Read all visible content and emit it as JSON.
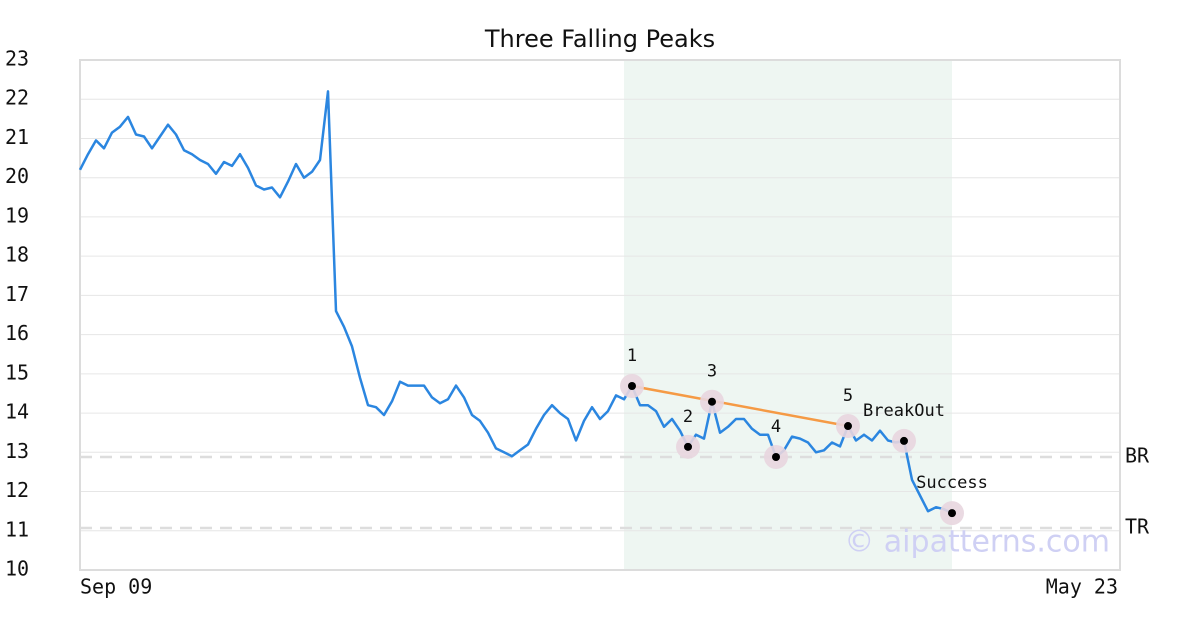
{
  "chart_data": {
    "type": "line",
    "title": "Three Falling Peaks",
    "categories": [
      "Sep 09",
      null,
      null,
      null,
      null,
      null,
      null,
      null,
      null,
      null,
      null,
      null,
      null,
      null,
      null,
      null,
      null,
      null,
      null,
      null,
      null,
      null,
      null,
      null,
      null,
      null,
      null,
      null,
      null,
      null,
      null,
      null,
      null,
      null,
      null,
      null,
      null,
      null,
      null,
      null,
      null,
      null,
      null,
      null,
      null,
      null,
      null,
      null,
      null,
      null,
      null,
      null,
      null,
      null,
      null,
      null,
      null,
      null,
      null,
      null,
      null,
      null,
      null,
      null,
      null,
      null,
      null,
      null,
      null,
      null,
      null,
      null,
      null,
      null,
      null,
      null,
      null,
      null,
      null,
      null,
      null,
      null,
      null,
      null,
      null,
      null,
      null,
      null,
      null,
      null,
      null,
      null,
      null,
      null,
      null,
      null,
      null,
      null,
      null,
      null,
      null,
      null,
      null,
      null,
      null,
      null,
      null,
      null,
      null,
      null,
      null,
      null,
      null,
      null,
      null,
      null,
      null,
      null,
      null,
      null,
      null,
      null,
      null,
      null,
      null,
      null,
      null,
      null,
      null,
      null,
      "May 23"
    ],
    "series": [
      {
        "color": "#2b86e0",
        "values": [
          20.2,
          20.6,
          20.95,
          20.75,
          21.15,
          21.3,
          21.55,
          21.1,
          21.05,
          20.75,
          21.05,
          21.35,
          21.1,
          20.7,
          20.6,
          20.45,
          20.35,
          20.1,
          20.4,
          20.3,
          20.6,
          20.25,
          19.8,
          19.7,
          19.75,
          19.5,
          19.9,
          20.35,
          20.0,
          20.15,
          20.45,
          22.2,
          16.6,
          16.2,
          15.7,
          14.9,
          14.2,
          14.15,
          13.95,
          14.3,
          14.8,
          14.7,
          14.7,
          14.7,
          14.4,
          14.25,
          14.35,
          14.7,
          14.4,
          13.95,
          13.8,
          13.5,
          13.1,
          13.0,
          12.9,
          13.05,
          13.2,
          13.6,
          13.95,
          14.2,
          14.0,
          13.85,
          13.3,
          13.8,
          14.15,
          13.85,
          14.05,
          14.45,
          14.35,
          14.69,
          14.2,
          14.2,
          14.05,
          13.65,
          13.85,
          13.55,
          13.14,
          13.45,
          13.35,
          14.29,
          13.5,
          13.65,
          13.85,
          13.85,
          13.6,
          13.45,
          13.45,
          12.88,
          13.05,
          13.4,
          13.35,
          13.25,
          13.0,
          13.05,
          13.25,
          13.15,
          13.67,
          13.3,
          13.45,
          13.3,
          13.55,
          13.3,
          13.25,
          13.29,
          12.3,
          11.9,
          11.5,
          11.6,
          11.55,
          11.45,
          null,
          null,
          null,
          null,
          null,
          null,
          null,
          null,
          null,
          null,
          null,
          null,
          null,
          null,
          null,
          null,
          null,
          null,
          null,
          null,
          null
        ]
      }
    ],
    "ylim": [
      10,
      23
    ],
    "yticks": [
      10,
      11,
      12,
      13,
      14,
      15,
      16,
      17,
      18,
      19,
      20,
      21,
      22,
      23
    ],
    "grid": true,
    "highlight": {
      "from": 68,
      "to": 109,
      "color": "#eef6f2"
    },
    "annotations": [
      {
        "label": "1",
        "index": 69
      },
      {
        "label": "2",
        "index": 76
      },
      {
        "label": "3",
        "index": 79
      },
      {
        "label": "4",
        "index": 87
      },
      {
        "label": "5",
        "index": 96
      },
      {
        "label": "BreakOut",
        "index": 103
      },
      {
        "label": "Success",
        "index": 109
      }
    ],
    "trendline": {
      "from": 69,
      "to": 96,
      "color": "#f59a45"
    },
    "reference_lines": [
      {
        "label": "BR",
        "value": 12.88
      },
      {
        "label": "TR",
        "value": 11.07
      }
    ],
    "watermark": "© aipatterns.com"
  }
}
